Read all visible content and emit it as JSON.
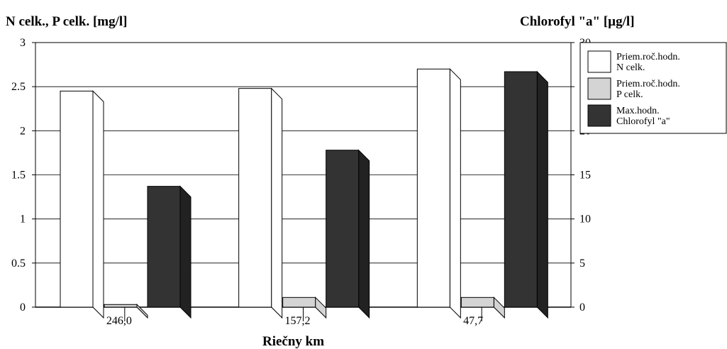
{
  "chart_data": {
    "type": "bar",
    "left_axis_title": "N celk., P celk. [mg/l]",
    "right_axis_title": "Chlorofyl \"a\" [µg/l]",
    "xlabel": "Riečny km",
    "categories": [
      "246,0",
      "157,2",
      "47,7"
    ],
    "y_left": {
      "min": 0,
      "max": 3,
      "ticks": [
        0,
        0.5,
        1,
        1.5,
        2,
        2.5,
        3
      ],
      "tick_labels": [
        "0",
        "0.5",
        "1",
        "1.5",
        "2",
        "2.5",
        "3"
      ]
    },
    "y_right": {
      "min": 0,
      "max": 30,
      "ticks": [
        0,
        5,
        10,
        15,
        20,
        25,
        30
      ],
      "tick_labels": [
        "0",
        "5",
        "10",
        "15",
        "20",
        "25",
        "30"
      ]
    },
    "grid": true,
    "legend_position": "right",
    "series": [
      {
        "name_line1": "Priem.roč.hodn.",
        "name_line2": "N celk.",
        "axis": "left",
        "color": "#ffffff",
        "values": [
          2.45,
          2.48,
          2.7
        ]
      },
      {
        "name_line1": "Priem.roč.hodn.",
        "name_line2": "P celk.",
        "axis": "left",
        "color": "#d4d4d4",
        "values": [
          0.03,
          0.11,
          0.11
        ]
      },
      {
        "name_line1": "Max.hodn.",
        "name_line2": "Chlorofyl \"a\"",
        "axis": "right",
        "color": "#333333",
        "values": [
          13.7,
          17.8,
          26.7
        ]
      }
    ]
  }
}
